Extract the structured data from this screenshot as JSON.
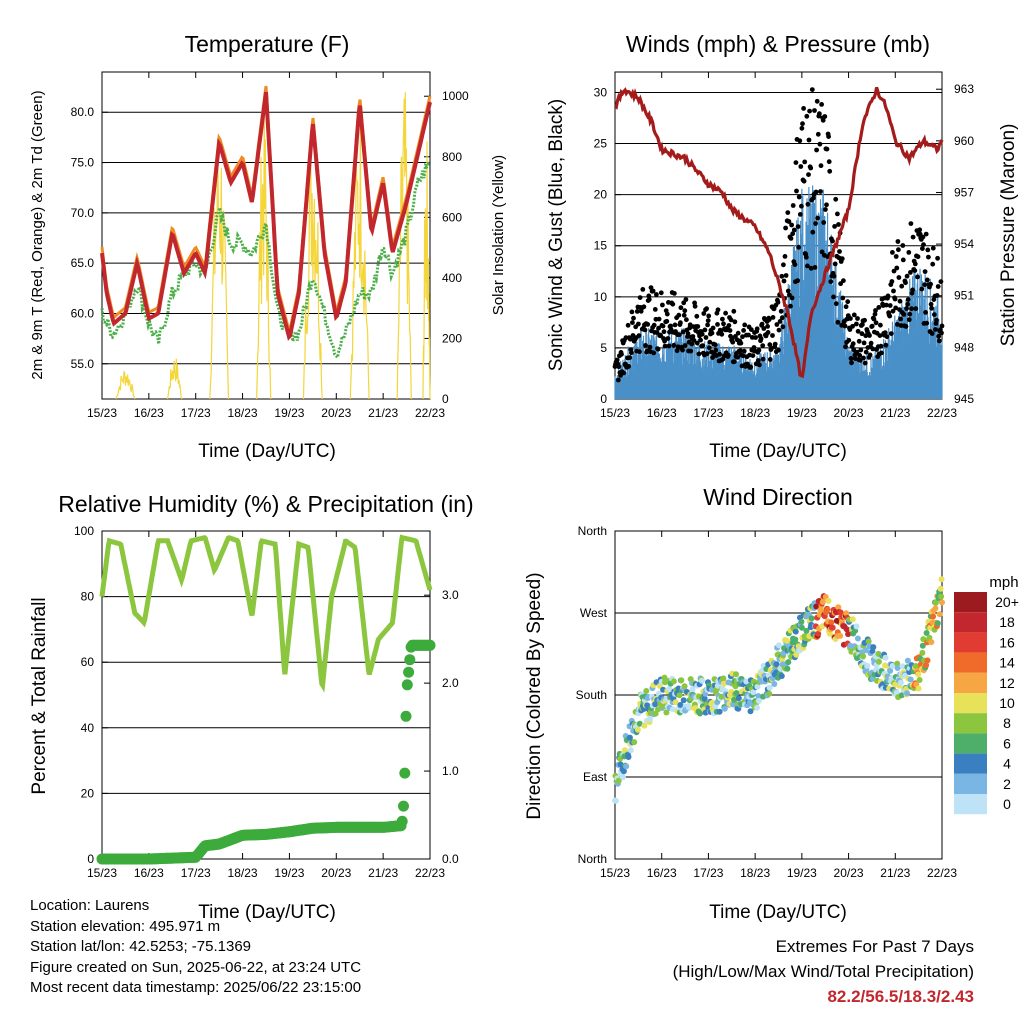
{
  "panels": {
    "temperature": {
      "title": "Temperature (F)",
      "ylabel_left": "2m & 9m T (Red, Orange) & 2m Td (Green)",
      "ylabel_right": "Solar Insolation (Yellow)",
      "xlabel": "Time (Day/UTC)"
    },
    "winds": {
      "title": "Winds (mph) & Pressure (mb)",
      "ylabel_left": "Sonic Wind & Gust (Blue, Black)",
      "ylabel_right": "Station Pressure (Maroon)",
      "xlabel": "Time (Day/UTC)"
    },
    "humidity": {
      "title": "Relative Humidity (%) & Precipitation (in)",
      "ylabel_left": "Percent & Total Rainfall",
      "xlabel": "Time (Day/UTC)"
    },
    "direction": {
      "title": "Wind Direction",
      "ylabel_left": "Direction (Colored By Speed)",
      "xlabel": "Time (Day/UTC)",
      "legend_title": "mph"
    }
  },
  "info": {
    "location": "Location: Laurens",
    "elevation": "Station elevation: 495.971 m",
    "latlon": "Station lat/lon: 42.5253; -75.1369",
    "created": "Figure created on Sun, 2025-06-22, at 23:24 UTC",
    "recent": "Most recent data timestamp: 2025/06/22 23:15:00"
  },
  "extremes": {
    "line1": "Extremes For Past 7 Days",
    "line2": "(High/Low/Max Wind/Total Precipitation)",
    "values": "82.2/56.5/18.3/2.43"
  },
  "colors": {
    "temp2m": "#c1272d",
    "temp9m": "#f08a24",
    "dewpoint": "#4daf4a",
    "solar": "#f4d53a",
    "wind": "#4a90c8",
    "gust": "#000000",
    "pressure": "#a31b1b",
    "rh": "#8cc63f",
    "precip": "#3cab3c"
  },
  "chart_data": [
    {
      "type": "line",
      "name": "temperature",
      "x_ticks": [
        "15/23",
        "16/23",
        "17/23",
        "18/23",
        "19/23",
        "20/23",
        "21/23",
        "22/23"
      ],
      "ylim": [
        51.5,
        84
      ],
      "y_ticks": [
        "55.0",
        "60.0",
        "65.0",
        "70.0",
        "75.0",
        "80.0"
      ],
      "y2lim": [
        0,
        1080
      ],
      "y2_ticks": [
        "0",
        "200",
        "400",
        "600",
        "800",
        "1000"
      ],
      "series": [
        {
          "key": "temp2m",
          "x": [
            0,
            0.1,
            0.25,
            0.5,
            0.75,
            1,
            1.2,
            1.5,
            1.75,
            2,
            2.2,
            2.5,
            2.75,
            3,
            3.2,
            3.5,
            3.75,
            4,
            4.2,
            4.5,
            4.75,
            5,
            5.2,
            5.5,
            5.75,
            6,
            6.2,
            6.5,
            6.75,
            7
          ],
          "y": [
            66,
            62,
            59,
            60,
            65,
            59.5,
            60,
            68,
            64,
            66,
            64,
            77,
            73,
            75,
            71,
            82,
            62,
            57.5,
            62,
            79,
            66,
            59.5,
            63,
            81,
            68,
            73,
            66,
            71,
            76,
            81
          ]
        },
        {
          "key": "dewpoint",
          "x": [
            0,
            0.1,
            0.25,
            0.5,
            0.75,
            1,
            1.2,
            1.5,
            1.75,
            2,
            2.2,
            2.5,
            2.75,
            3,
            3.2,
            3.5,
            3.75,
            4,
            4.2,
            4.5,
            4.75,
            5,
            5.2,
            5.5,
            5.75,
            6,
            6.2,
            6.5,
            6.75,
            7
          ],
          "y": [
            60,
            59,
            58,
            60,
            63,
            59,
            57,
            62,
            64,
            65,
            64,
            70,
            67,
            67,
            66,
            69,
            60,
            58,
            58,
            64,
            60,
            56,
            58,
            62,
            62,
            67,
            64,
            68,
            73,
            75
          ]
        },
        {
          "key": "solar",
          "x": [
            0.3,
            0.5,
            0.7,
            1.4,
            1.55,
            1.7,
            2.3,
            2.5,
            2.7,
            3.3,
            3.45,
            3.6,
            4.3,
            4.5,
            4.65,
            5.3,
            5.5,
            5.7,
            6.3,
            6.45,
            6.6,
            6.9
          ],
          "y": [
            0,
            100,
            0,
            0,
            150,
            0,
            0,
            980,
            0,
            0,
            1000,
            0,
            0,
            1020,
            0,
            0,
            1000,
            0,
            0,
            1050,
            0,
            900
          ]
        }
      ]
    },
    {
      "type": "line",
      "name": "winds",
      "x_ticks": [
        "15/23",
        "16/23",
        "17/23",
        "18/23",
        "19/23",
        "20/23",
        "21/23",
        "22/23"
      ],
      "ylim": [
        0,
        32
      ],
      "y_ticks": [
        "0",
        "5",
        "10",
        "15",
        "20",
        "25",
        "30"
      ],
      "y2lim": [
        945,
        964
      ],
      "y2_ticks": [
        "945",
        "948",
        "951",
        "954",
        "957",
        "960",
        "963"
      ],
      "series": [
        {
          "key": "pressure",
          "x": [
            0,
            0.2,
            0.5,
            0.8,
            1,
            1.5,
            2,
            2.3,
            2.5,
            3,
            3.3,
            3.7,
            4,
            4.2,
            4.6,
            5,
            5.3,
            5.6,
            5.8,
            6,
            6.3,
            6.6,
            6.9,
            7
          ],
          "y": [
            962,
            963,
            962.5,
            961,
            959.5,
            959,
            957.5,
            957,
            956,
            955,
            953.5,
            950,
            946,
            950,
            953,
            956,
            961,
            963,
            962,
            960,
            959,
            960,
            959.5,
            960
          ]
        },
        {
          "key": "wind",
          "x": [
            0,
            0.5,
            1,
            1.5,
            2,
            2.5,
            3,
            3.5,
            4,
            4.5,
            5,
            5.5,
            6,
            6.5,
            7
          ],
          "y": [
            2,
            5,
            5,
            5,
            4,
            4,
            3,
            4,
            15,
            15,
            4,
            3,
            6,
            10,
            7
          ]
        },
        {
          "key": "gust",
          "x": [
            0,
            0.5,
            1,
            1.5,
            2,
            2.5,
            3,
            3.5,
            4,
            4.5,
            5,
            5.5,
            6,
            6.5,
            7
          ],
          "y": [
            3,
            10,
            10,
            9,
            8,
            8,
            6,
            10,
            28,
            27,
            8,
            7,
            14,
            17,
            12
          ]
        }
      ]
    },
    {
      "type": "line",
      "name": "humidity",
      "x_ticks": [
        "15/23",
        "16/23",
        "17/23",
        "18/23",
        "19/23",
        "20/23",
        "21/23",
        "22/23"
      ],
      "ylim": [
        0,
        100
      ],
      "y_ticks": [
        "0",
        "20",
        "40",
        "60",
        "80",
        "100"
      ],
      "y2lim": [
        0,
        3.73
      ],
      "y2_ticks": [
        "0.0",
        "1.0",
        "2.0",
        "3.0"
      ],
      "series": [
        {
          "key": "rh",
          "x": [
            0,
            0.15,
            0.4,
            0.7,
            0.9,
            1.2,
            1.4,
            1.7,
            1.9,
            2.2,
            2.4,
            2.7,
            2.9,
            3.2,
            3.4,
            3.7,
            3.9,
            4.2,
            4.4,
            4.7,
            4.9,
            5.2,
            5.4,
            5.7,
            5.9,
            6.2,
            6.4,
            6.7,
            7
          ],
          "y": [
            80,
            97,
            96,
            75,
            72,
            97,
            97,
            85,
            97,
            98,
            88,
            98,
            97,
            74,
            97,
            96,
            56,
            96,
            95,
            52,
            80,
            97,
            95,
            56,
            67,
            72,
            98,
            97,
            82
          ]
        },
        {
          "key": "precip",
          "x": [
            0,
            1,
            2,
            2.2,
            2.5,
            3,
            3.5,
            4,
            4.5,
            5,
            5.5,
            6,
            6.4,
            6.45,
            6.5,
            6.6,
            7
          ],
          "y": [
            0,
            0,
            0.02,
            0.15,
            0.17,
            0.27,
            0.28,
            0.31,
            0.35,
            0.36,
            0.36,
            0.36,
            0.38,
            0.7,
            1.9,
            2.43,
            2.43
          ]
        }
      ]
    },
    {
      "type": "scatter",
      "name": "wind_direction",
      "x_ticks": [
        "15/23",
        "16/23",
        "17/23",
        "18/23",
        "19/23",
        "20/23",
        "21/23",
        "22/23"
      ],
      "y_ticks": [
        "North",
        "East",
        "South",
        "West",
        "North"
      ],
      "ylim": [
        0,
        360
      ],
      "legend": [
        "20+",
        "18",
        "16",
        "14",
        "12",
        "10",
        "8",
        "6",
        "4",
        "2",
        "0"
      ],
      "legend_colors": [
        "#9b1b1e",
        "#c1272d",
        "#e03c31",
        "#f06a2a",
        "#f6a643",
        "#e8e15a",
        "#8cc63f",
        "#4daf6a",
        "#3a7fbf",
        "#7ab6e3",
        "#bfe3f6"
      ],
      "series": [
        {
          "key": "direction",
          "x": [
            0,
            0.5,
            1,
            1.5,
            2,
            2.5,
            3,
            3.5,
            4,
            4.5,
            5,
            5.5,
            6,
            6.5,
            7
          ],
          "y": [
            80,
            160,
            180,
            180,
            178,
            185,
            180,
            215,
            250,
            270,
            250,
            215,
            195,
            205,
            290
          ]
        }
      ]
    }
  ]
}
